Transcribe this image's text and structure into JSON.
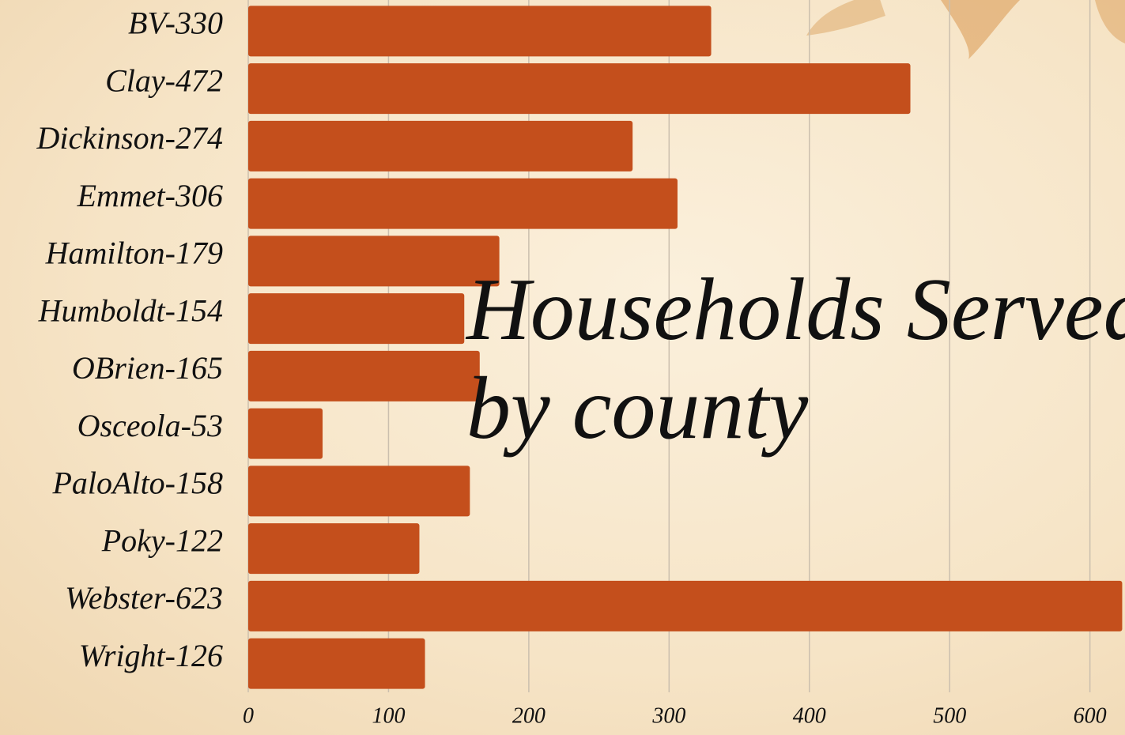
{
  "chart_data": {
    "type": "bar",
    "orientation": "horizontal",
    "title": "Households Served by county",
    "categories": [
      "BV-330",
      "Clay-472",
      "Dickinson-274",
      "Emmet-306",
      "Hamilton-179",
      "Humboldt-154",
      "OBrien-165",
      "Osceola-53",
      "PaloAlto-158",
      "Poky-122",
      "Webster-623",
      "Wright-126"
    ],
    "values": [
      330,
      472,
      274,
      306,
      179,
      154,
      165,
      53,
      158,
      122,
      623,
      126
    ],
    "color": "#c44f1c",
    "xlim": [
      0,
      625
    ],
    "xticks": [
      0,
      100,
      200,
      300,
      400,
      500,
      600
    ],
    "grid": true
  }
}
